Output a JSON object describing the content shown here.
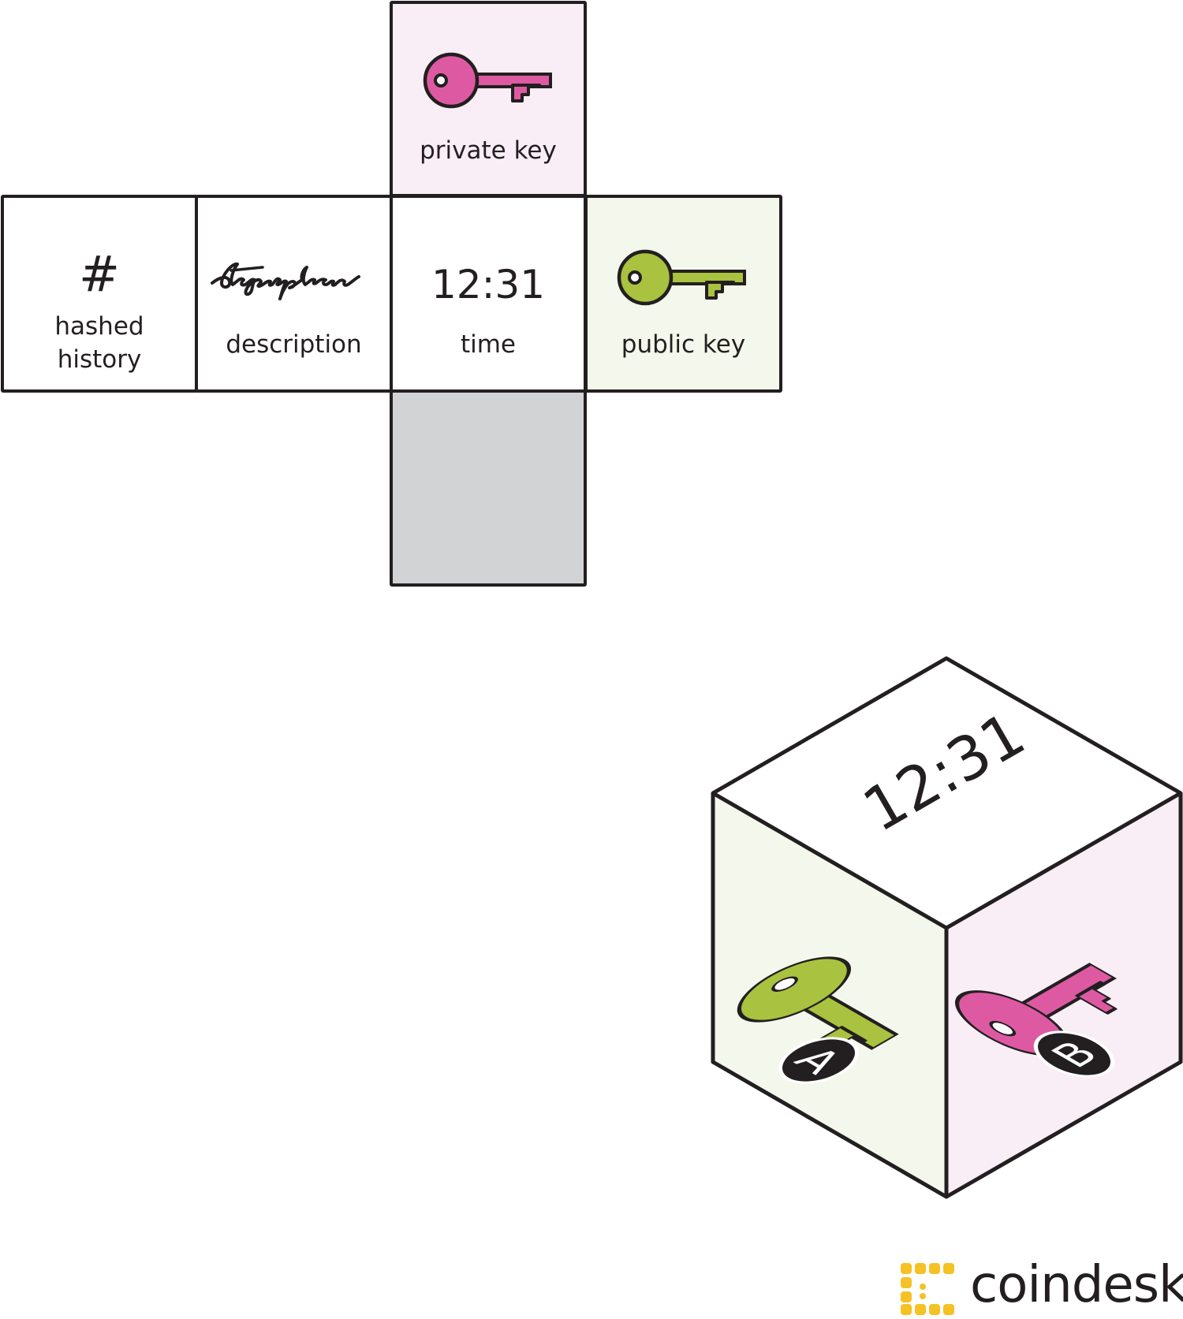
{
  "net": {
    "top": {
      "label": "private key",
      "icon": "key-icon",
      "fill": "#f9eef5",
      "key_color": "#dd5aa3"
    },
    "hashed_history": {
      "symbol": "#",
      "label_line1": "hashed",
      "label_line2": "history"
    },
    "description": {
      "signature_icon": "handwritten-signature-icon",
      "label": "description"
    },
    "time": {
      "value": "12:31",
      "label": "time"
    },
    "public_key": {
      "label": "public key",
      "icon": "key-icon",
      "fill": "#f4f7ec",
      "key_color": "#a9c23f"
    },
    "bottom": {
      "fill": "#d1d3d4"
    }
  },
  "cube": {
    "top_text": "12:31",
    "left_badge": "A",
    "right_badge": "B",
    "left_fill": "#f4f7ec",
    "right_fill": "#f9eef5"
  },
  "brand": {
    "name": "coindesk",
    "color": "#f6c124"
  }
}
